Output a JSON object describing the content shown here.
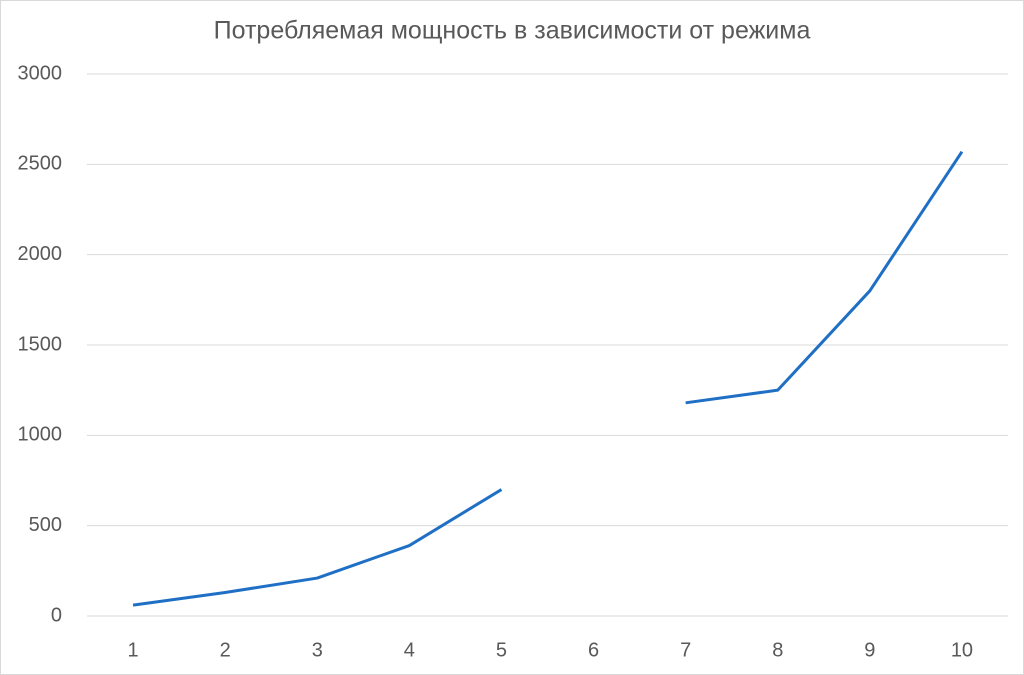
{
  "chart_data": {
    "type": "line",
    "title": "Потребляемая мощность в зависимости от режима",
    "categories": [
      "1",
      "2",
      "3",
      "4",
      "5",
      "6",
      "7",
      "8",
      "9",
      "10"
    ],
    "series": [
      {
        "color": "#1f6fc5",
        "values": [
          60,
          130,
          210,
          390,
          700,
          null,
          1180,
          1250,
          1800,
          2570
        ]
      }
    ],
    "ylim": [
      0,
      3000
    ],
    "yticks": [
      0,
      500,
      1000,
      1500,
      2000,
      2500,
      3000
    ],
    "grid": true
  }
}
